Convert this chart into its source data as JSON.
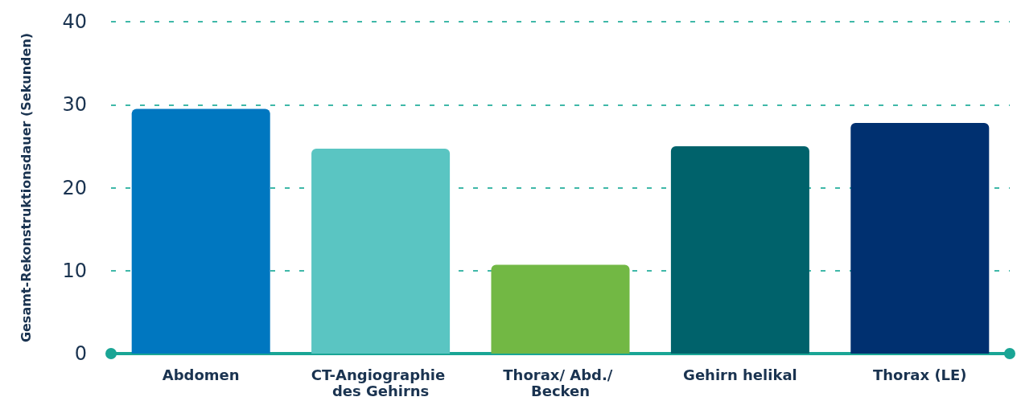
{
  "chart_data": {
    "type": "bar",
    "ylabel": "Gesamt-Rekonstruktionsdauer (Sekunden)",
    "categories": [
      "Abdomen",
      "CT-Angiographie des Gehirns",
      "Thorax/ Abd./ Becken",
      "Gehirn helikal",
      "Thorax (LE)"
    ],
    "values": [
      29.5,
      24.7,
      10.7,
      25.0,
      27.8
    ],
    "colors": [
      "#0077c0",
      "#5ac5c2",
      "#72b844",
      "#00626b",
      "#003070"
    ],
    "ylim": [
      0,
      40
    ],
    "yticks": [
      0,
      10,
      20,
      30,
      40
    ],
    "grid": "y"
  }
}
